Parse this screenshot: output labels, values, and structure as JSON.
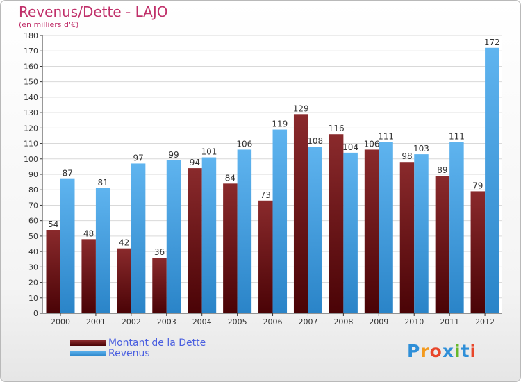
{
  "header": {
    "title": "Revenus/Dette - LAJO",
    "subtitle": "(en milliers d'€)"
  },
  "legend": [
    {
      "label": "Montant de la Dette",
      "color": "#6b0f12"
    },
    {
      "label": "Revenus",
      "color": "#3c9ee0"
    }
  ],
  "logo": {
    "text": "Proxiti",
    "letter_colors": [
      "#2f8fd8",
      "#f39a1e",
      "#e8462a",
      "#2f8fd8",
      "#66b82b",
      "#2f8fd8",
      "#e8462a"
    ]
  },
  "chart_data": {
    "type": "bar",
    "title": "Revenus/Dette - LAJO",
    "subtitle": "(en milliers d'€)",
    "categories": [
      "2000",
      "2001",
      "2002",
      "2003",
      "2004",
      "2005",
      "2006",
      "2007",
      "2008",
      "2009",
      "2010",
      "2011",
      "2012"
    ],
    "series": [
      {
        "name": "Montant de la Dette",
        "color": "#6b0f12",
        "values": [
          54,
          48,
          42,
          36,
          94,
          84,
          73,
          129,
          116,
          106,
          98,
          89,
          79
        ]
      },
      {
        "name": "Revenus",
        "color": "#3c9ee0",
        "values": [
          87,
          81,
          97,
          99,
          101,
          106,
          119,
          108,
          104,
          111,
          103,
          111,
          172
        ]
      }
    ],
    "ylim": [
      0,
      180
    ],
    "yticks": [
      0,
      10,
      20,
      30,
      40,
      50,
      60,
      70,
      80,
      90,
      100,
      110,
      120,
      130,
      140,
      150,
      160,
      170,
      180
    ],
    "grid": true,
    "legend_position": "bottom-left"
  }
}
